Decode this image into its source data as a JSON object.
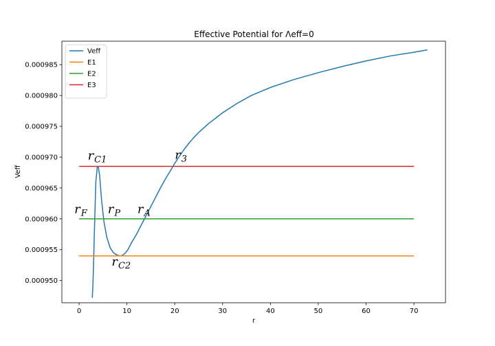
{
  "chart_data": {
    "type": "line",
    "title": "Effective Potential for Λeff=0",
    "xlabel": "r",
    "ylabel": "Veff",
    "xlim": [
      -3.6,
      76.6
    ],
    "ylim": [
      0.0009464,
      0.0009888
    ],
    "x_ticks": [
      0,
      10,
      20,
      30,
      40,
      50,
      60,
      70
    ],
    "x_tick_labels": [
      "0",
      "10",
      "20",
      "30",
      "40",
      "50",
      "60",
      "70"
    ],
    "y_ticks": [
      0.00095,
      0.000955,
      0.00096,
      0.000965,
      0.00097,
      0.000975,
      0.00098,
      0.000985
    ],
    "y_tick_labels": [
      "0.000950",
      "0.000955",
      "0.000960",
      "0.000965",
      "0.000970",
      "0.000975",
      "0.000980",
      "0.000985"
    ],
    "legend_position": "top-left",
    "grid": false,
    "series": [
      {
        "name": "Veff",
        "color": "#1f77b4",
        "x": [
          2.75,
          2.85,
          3.0,
          3.2,
          3.5,
          3.8,
          4.0,
          4.3,
          4.7,
          5.2,
          5.8,
          6.5,
          7.2,
          8.0,
          8.6,
          9.1,
          9.6,
          10.2,
          11.0,
          12.0,
          13.0,
          14.0,
          15.0,
          16.0,
          17.0,
          18.0,
          19.0,
          20.0,
          21.0,
          22.0,
          23.0,
          24.0,
          25.0,
          27.0,
          30.0,
          33.0,
          36.0,
          40.0,
          45.0,
          50.0,
          55.0,
          60.0,
          65.0,
          70.0,
          72.8
        ],
        "y": [
          0.0009472,
          0.0009485,
          0.000952,
          0.000958,
          0.000966,
          0.0009684,
          0.0009685,
          0.000967,
          0.000963,
          0.0009595,
          0.000957,
          0.0009553,
          0.0009545,
          0.0009541,
          0.000954,
          0.0009541,
          0.0009544,
          0.000955,
          0.0009562,
          0.0009575,
          0.000959,
          0.0009605,
          0.000962,
          0.0009635,
          0.000965,
          0.0009664,
          0.0009677,
          0.000969,
          0.0009702,
          0.0009713,
          0.0009723,
          0.0009732,
          0.000974,
          0.0009754,
          0.0009772,
          0.0009787,
          0.00098,
          0.0009813,
          0.0009826,
          0.0009837,
          0.0009847,
          0.0009856,
          0.0009864,
          0.000987,
          0.0009874
        ]
      },
      {
        "name": "E1",
        "color": "#ff7f0e",
        "x": [
          0,
          70
        ],
        "y": [
          0.000954,
          0.000954
        ]
      },
      {
        "name": "E2",
        "color": "#2ca02c",
        "x": [
          0,
          70
        ],
        "y": [
          0.00096,
          0.00096
        ]
      },
      {
        "name": "E3",
        "color": "#d62728",
        "x": [
          0,
          70
        ],
        "y": [
          0.0009685,
          0.0009685
        ]
      }
    ],
    "annotations": [
      {
        "base": "r",
        "sub": "C1",
        "x": 1.8,
        "y": 0.0009696
      },
      {
        "base": "r",
        "sub": "3",
        "x": 20.0,
        "y": 0.0009697
      },
      {
        "base": "r",
        "sub": "F",
        "x": -1.0,
        "y": 0.0009609
      },
      {
        "base": "r",
        "sub": "P",
        "x": 6.0,
        "y": 0.0009609
      },
      {
        "base": "r",
        "sub": "A",
        "x": 12.2,
        "y": 0.0009609
      },
      {
        "base": "r",
        "sub": "C2",
        "x": 6.8,
        "y": 0.0009524
      }
    ]
  }
}
